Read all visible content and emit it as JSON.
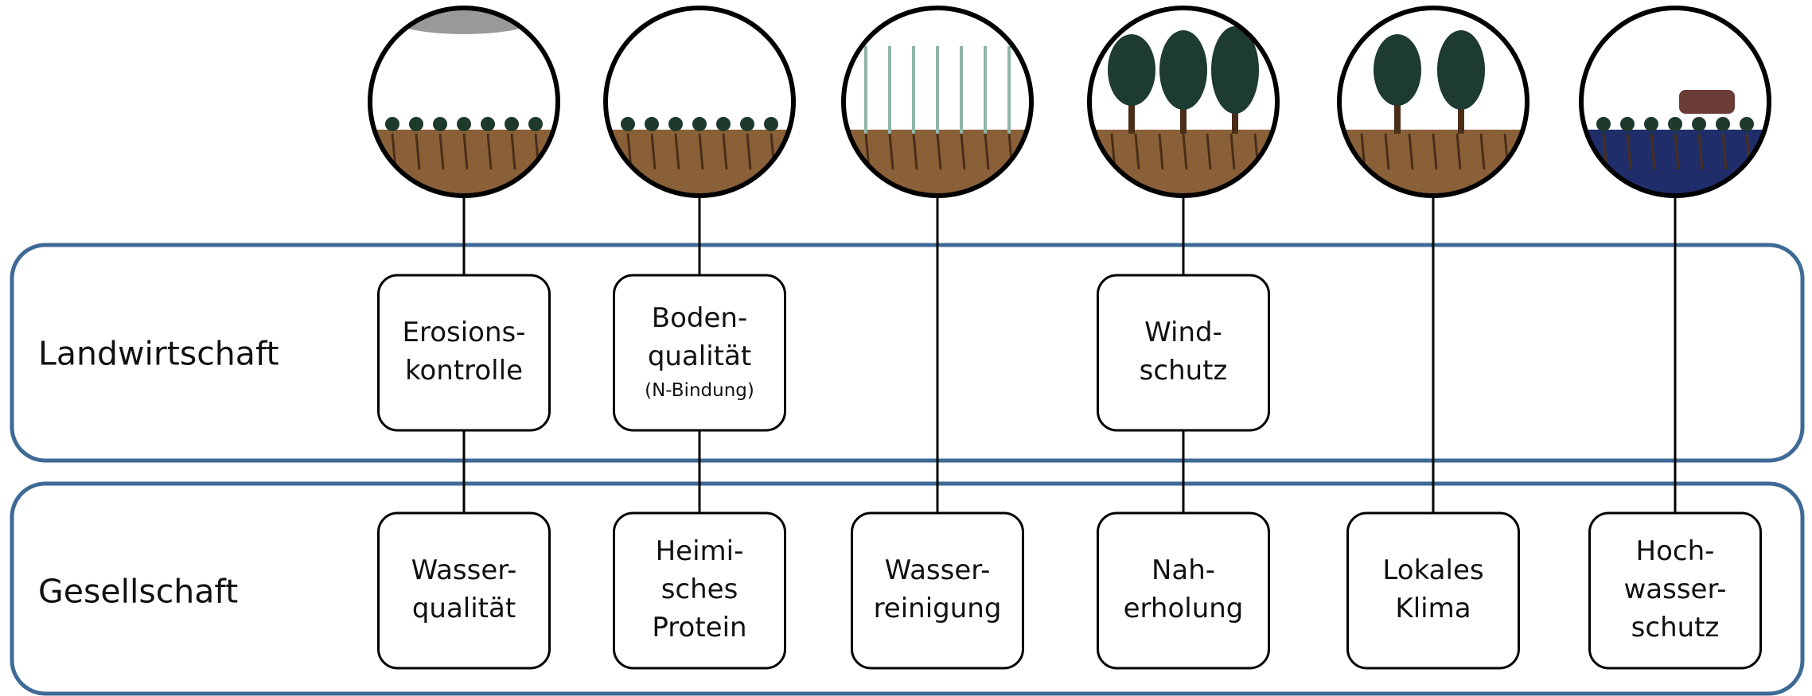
{
  "rows": [
    {
      "label": "Landwirtschaft",
      "boxes": [
        {
          "lines": [
            "Erosions-",
            "kontrolle"
          ]
        },
        {
          "lines": [
            "Boden-",
            "qualität"
          ],
          "note": "(N-Bindung)"
        },
        null,
        {
          "lines": [
            "Wind-",
            "schutz"
          ]
        },
        null,
        null
      ]
    },
    {
      "label": "Gesellschaft",
      "boxes": [
        {
          "lines": [
            "Wasser-",
            "qualität"
          ]
        },
        {
          "lines": [
            "Heimi-",
            "sches",
            "Protein"
          ]
        },
        {
          "lines": [
            "Wasser-",
            "reinigung"
          ]
        },
        {
          "lines": [
            "Nah-",
            "erholung"
          ]
        },
        {
          "lines": [
            "Lokales",
            "Klima"
          ]
        },
        {
          "lines": [
            "Hoch-",
            "wasser-",
            "schutz"
          ]
        }
      ]
    }
  ]
}
